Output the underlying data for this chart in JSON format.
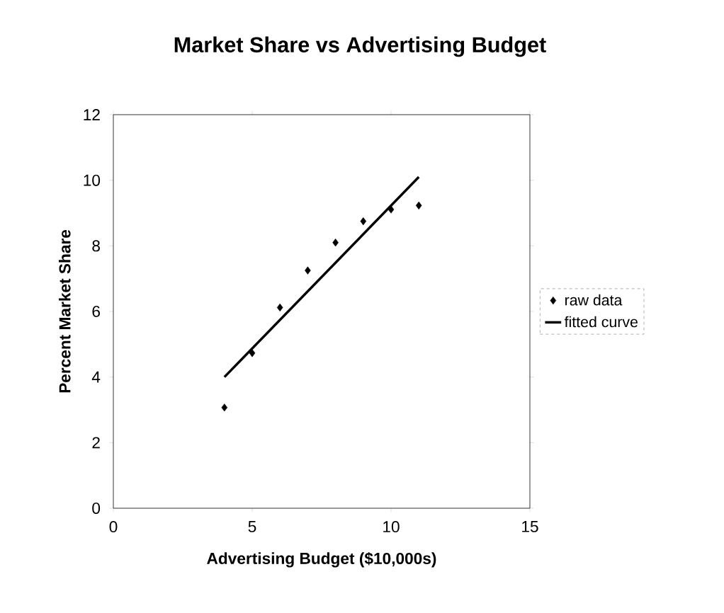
{
  "chart_data": {
    "type": "scatter",
    "title": "Market Share vs Advertising Budget",
    "xlabel": "Advertising Budget ($10,000s)",
    "ylabel": "Percent Market Share",
    "xlim": [
      0,
      15
    ],
    "xticks": [
      0,
      5,
      10,
      15
    ],
    "ylim": [
      0,
      12
    ],
    "yticks": [
      0,
      2,
      4,
      6,
      8,
      10,
      12
    ],
    "grid": false,
    "legend": "right",
    "series": [
      {
        "name": "raw data",
        "marker": "diamond",
        "color": "#000000",
        "x": [
          4,
          5,
          6,
          7,
          8,
          9,
          10,
          11
        ],
        "values": [
          3.07,
          4.73,
          6.12,
          7.25,
          8.1,
          8.75,
          9.11,
          9.23
        ]
      },
      {
        "name": "fitted curve",
        "type": "line",
        "marker": "none",
        "line_style": "solid",
        "color": "#000000",
        "x": [
          4,
          11
        ],
        "values": [
          4.0,
          10.1
        ]
      }
    ]
  }
}
